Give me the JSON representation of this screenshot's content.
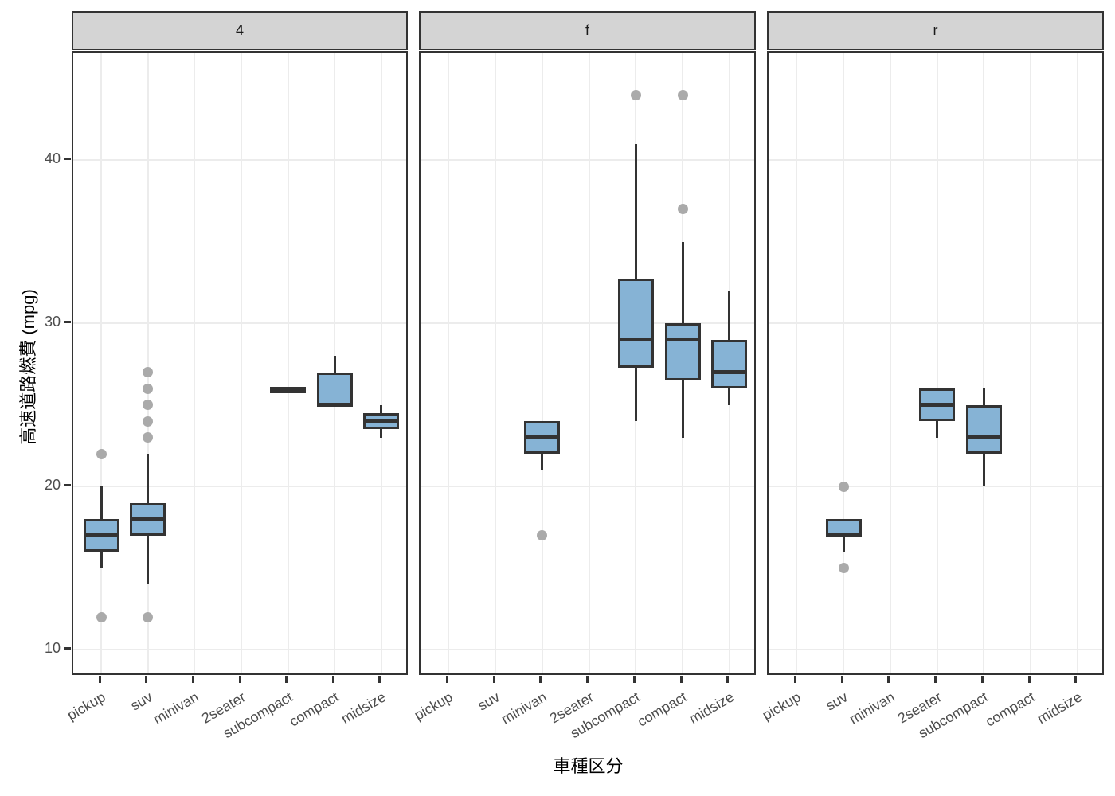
{
  "chart_data": {
    "type": "boxplot",
    "title": "",
    "xlabel": "車種区分",
    "ylabel": "高速道路燃費 (mpg)",
    "legend": "none",
    "grid": "major-only",
    "facet_labels": [
      "4",
      "f",
      "r"
    ],
    "categories": [
      "pickup",
      "suv",
      "minivan",
      "2seater",
      "subcompact",
      "compact",
      "midsize"
    ],
    "yticks": [
      10,
      20,
      30,
      40
    ],
    "ylim": [
      8.3,
      46.6
    ],
    "facets": [
      {
        "label": "4",
        "boxes": {
          "pickup": {
            "whisker_low": 15,
            "q1": 16,
            "median": 17,
            "q3": 18,
            "whisker_high": 20,
            "outliers": [
              22,
              12
            ]
          },
          "suv": {
            "whisker_low": 14,
            "q1": 17,
            "median": 18,
            "q3": 19,
            "whisker_high": 22,
            "outliers": [
              27,
              26,
              25,
              24,
              23,
              12
            ]
          },
          "subcompact": {
            "whisker_low": 26,
            "q1": 26,
            "median": 26,
            "q3": 26,
            "whisker_high": 26,
            "outliers": []
          },
          "compact": {
            "whisker_low": 25,
            "q1": 25,
            "median": 25,
            "q3": 27,
            "whisker_high": 28,
            "outliers": []
          },
          "midsize": {
            "whisker_low": 23,
            "q1": 23.5,
            "median": 24,
            "q3": 24.5,
            "whisker_high": 25,
            "outliers": []
          }
        }
      },
      {
        "label": "f",
        "boxes": {
          "minivan": {
            "whisker_low": 21,
            "q1": 22,
            "median": 23,
            "q3": 24,
            "whisker_high": 24,
            "outliers": [
              17
            ]
          },
          "subcompact": {
            "whisker_low": 24,
            "q1": 27.25,
            "median": 29,
            "q3": 32.75,
            "whisker_high": 41,
            "outliers": [
              44
            ]
          },
          "compact": {
            "whisker_low": 23,
            "q1": 26.5,
            "median": 29,
            "q3": 30,
            "whisker_high": 35,
            "outliers": [
              44,
              37
            ]
          },
          "midsize": {
            "whisker_low": 25,
            "q1": 26,
            "median": 27,
            "q3": 29,
            "whisker_high": 32,
            "outliers": []
          }
        }
      },
      {
        "label": "r",
        "boxes": {
          "suv": {
            "whisker_low": 16,
            "q1": 17,
            "median": 17,
            "q3": 18,
            "whisker_high": 18,
            "outliers": [
              20,
              15
            ]
          },
          "2seater": {
            "whisker_low": 23,
            "q1": 24,
            "median": 25,
            "q3": 26,
            "whisker_high": 26,
            "outliers": []
          },
          "subcompact": {
            "whisker_low": 20,
            "q1": 22,
            "median": 23,
            "q3": 25,
            "whisker_high": 26,
            "outliers": []
          }
        }
      }
    ]
  },
  "colors": {
    "box_fill": "#86b3d5",
    "box_stroke": "#333333",
    "median_stroke": "#333333",
    "outlier": "#aaaaaa",
    "gridline": "#ececec",
    "panel_border": "#333333",
    "strip_background": "#d4d4d4",
    "strip_text": "#1a1a1a",
    "tick_label": "#4d4d4d",
    "axis_title": "#000000",
    "background": "#ffffff"
  }
}
